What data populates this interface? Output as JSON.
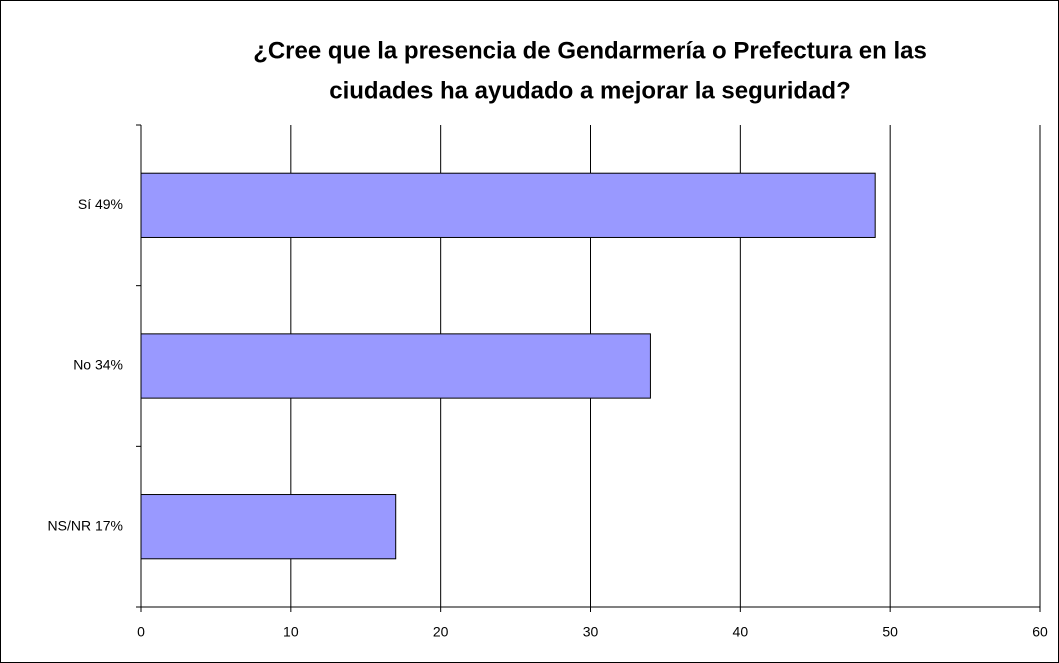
{
  "chart_data": {
    "type": "bar",
    "orientation": "horizontal",
    "title": [
      "¿Cree que la presencia de Gendarmería o Prefectura en las",
      "ciudades ha ayudado a mejorar la seguridad?"
    ],
    "categories": [
      "Sí  49%",
      "No 34%",
      "NS/NR 17%"
    ],
    "values": [
      49,
      34,
      17
    ],
    "color": "#9999ff",
    "xlim": [
      0,
      60
    ],
    "xticks": [
      0,
      10,
      20,
      30,
      40,
      50,
      60
    ],
    "grid": true
  }
}
